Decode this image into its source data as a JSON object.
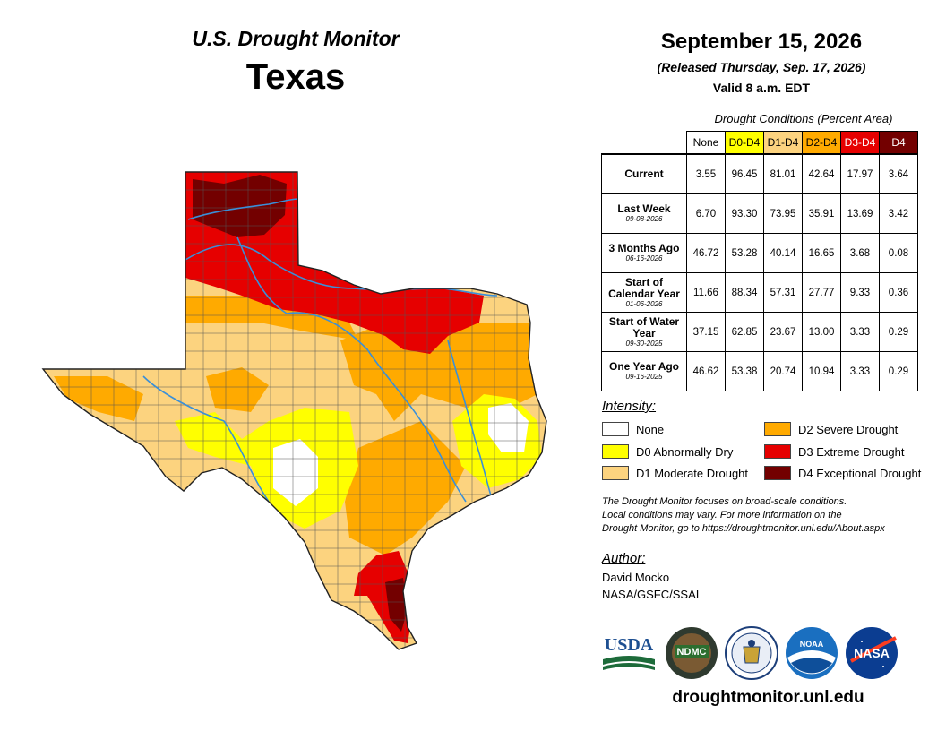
{
  "header": {
    "monitor_title": "U.S. Drought Monitor",
    "state": "Texas"
  },
  "dates": {
    "map_date": "September 15, 2026",
    "released": "(Released Thursday, Sep. 17, 2026)",
    "valid": "Valid 8 a.m. EDT"
  },
  "table": {
    "caption": "Drought Conditions (Percent Area)",
    "columns": [
      {
        "label": "None",
        "color": "#ffffff",
        "text_color": "#000000"
      },
      {
        "label": "D0-D4",
        "color": "#ffff00",
        "text_color": "#000000"
      },
      {
        "label": "D1-D4",
        "color": "#fcd37f",
        "text_color": "#000000"
      },
      {
        "label": "D2-D4",
        "color": "#ffaa00",
        "text_color": "#000000"
      },
      {
        "label": "D3-D4",
        "color": "#e60000",
        "text_color": "#ffffff"
      },
      {
        "label": "D4",
        "color": "#730000",
        "text_color": "#ffffff"
      }
    ],
    "rows": [
      {
        "label": "Current",
        "sublabel": "",
        "values": [
          "3.55",
          "96.45",
          "81.01",
          "42.64",
          "17.97",
          "3.64"
        ]
      },
      {
        "label": "Last Week",
        "sublabel": "09-08-2026",
        "values": [
          "6.70",
          "93.30",
          "73.95",
          "35.91",
          "13.69",
          "3.42"
        ]
      },
      {
        "label": "3 Months Ago",
        "sublabel": "06-16-2026",
        "values": [
          "46.72",
          "53.28",
          "40.14",
          "16.65",
          "3.68",
          "0.08"
        ]
      },
      {
        "label": "Start of Calendar Year",
        "sublabel": "01-06-2026",
        "values": [
          "11.66",
          "88.34",
          "57.31",
          "27.77",
          "9.33",
          "0.36"
        ]
      },
      {
        "label": "Start of Water Year",
        "sublabel": "09-30-2025",
        "values": [
          "37.15",
          "62.85",
          "23.67",
          "13.00",
          "3.33",
          "0.29"
        ]
      },
      {
        "label": "One Year Ago",
        "sublabel": "09-16-2025",
        "values": [
          "46.62",
          "53.38",
          "20.74",
          "10.94",
          "3.33",
          "0.29"
        ]
      }
    ]
  },
  "legend": {
    "title": "Intensity:",
    "items": [
      {
        "label": "None",
        "color": "#ffffff"
      },
      {
        "label": "D0 Abnormally Dry",
        "color": "#ffff00"
      },
      {
        "label": "D1 Moderate Drought",
        "color": "#fcd37f"
      },
      {
        "label": "D2 Severe Drought",
        "color": "#ffaa00"
      },
      {
        "label": "D3 Extreme Drought",
        "color": "#e60000"
      },
      {
        "label": "D4 Exceptional Drought",
        "color": "#730000"
      }
    ]
  },
  "note": {
    "line1": "The Drought Monitor focuses on broad-scale conditions.",
    "line2": "Local conditions may vary. For more information on the",
    "line3": "Drought Monitor, go to https://droughtmonitor.unl.edu/About.aspx"
  },
  "author": {
    "title": "Author:",
    "name": "David Mocko",
    "org": "NASA/GSFC/SSAI"
  },
  "logos": {
    "usda": "USDA",
    "ndmc": "NDMC",
    "noaa": "NOAA",
    "nasa": "NASA"
  },
  "website": "droughtmonitor.unl.edu"
}
